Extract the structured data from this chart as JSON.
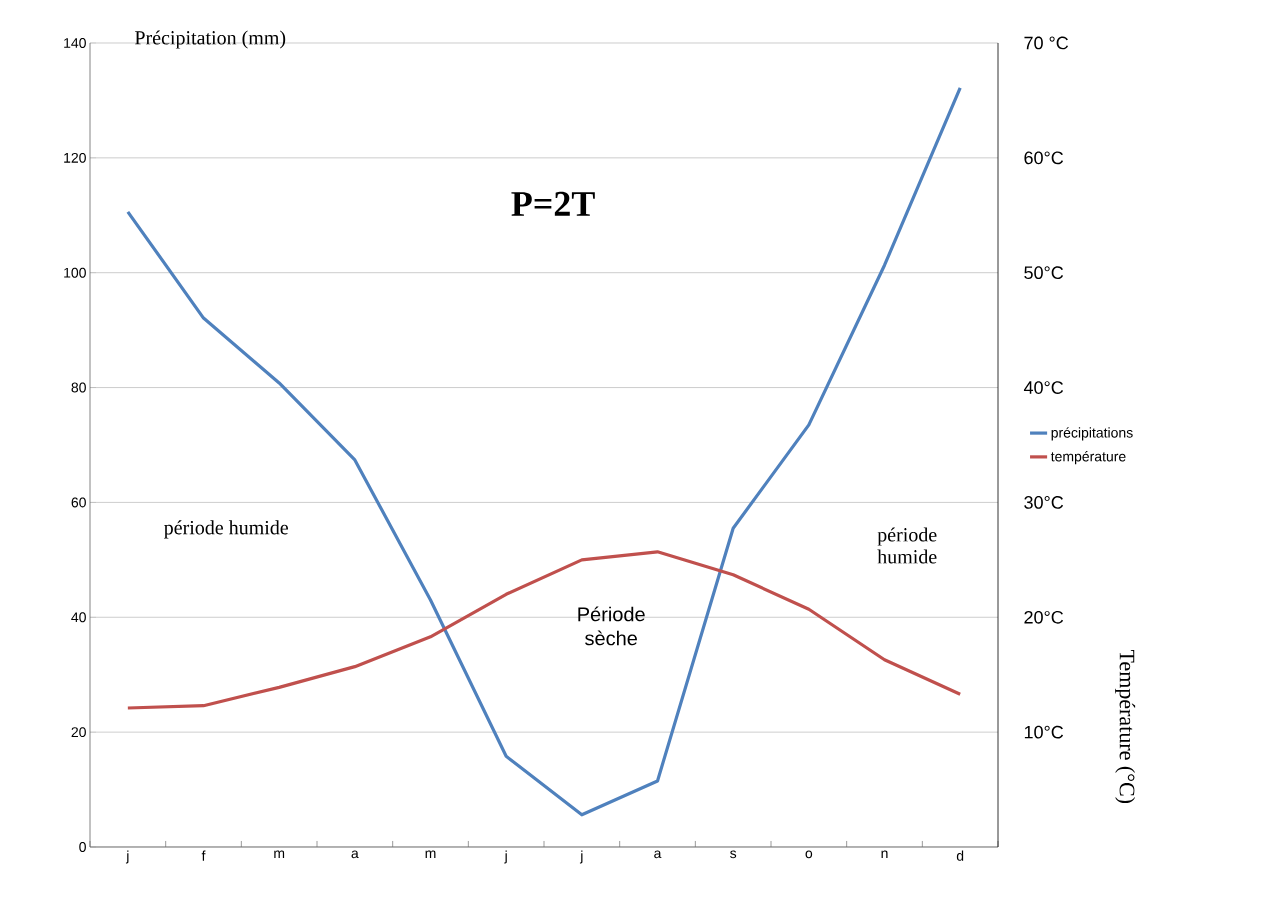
{
  "chart_data": {
    "type": "line",
    "ylabel": "Précipitation (mm)",
    "y2label": "Température (°C)",
    "categories": [
      "j",
      "f",
      "m",
      "a",
      "m",
      "j",
      "j",
      "a",
      "s",
      "o",
      "n",
      "d"
    ],
    "series": [
      {
        "name": "précipitations",
        "color": "#4f81bd",
        "values": [
          110.6,
          92.1,
          80.8,
          67.4,
          43,
          15.8,
          5.6,
          11.5,
          55.5,
          73.5,
          101.3,
          132.2
        ]
      },
      {
        "name": "température",
        "color": "#c0504d",
        "axis": "y2",
        "values": [
          12.1,
          12.3,
          13.9,
          15.7,
          18.3,
          22,
          25,
          25.7,
          23.7,
          20.7,
          16.3,
          13.3
        ]
      }
    ],
    "ylim": [
      0,
      140
    ],
    "yticks": [
      0,
      20,
      40,
      60,
      80,
      100,
      120,
      140
    ],
    "y2lim": [
      0,
      70
    ],
    "y2ticks": [
      {
        "value": 10,
        "label": "10°C"
      },
      {
        "value": 20,
        "label": "20°C"
      },
      {
        "value": 30,
        "label": "30°C"
      },
      {
        "value": 40,
        "label": "40°C"
      },
      {
        "value": 50,
        "label": "50°C"
      },
      {
        "value": 60,
        "label": "60°C"
      },
      {
        "value": 70,
        "label": "70 °C"
      }
    ],
    "annotations": [
      "P=2T",
      "période humide",
      "période humide",
      "Période sèche"
    ],
    "grid": "y",
    "legend": "right",
    "marker": "none",
    "line_style": "solid"
  }
}
